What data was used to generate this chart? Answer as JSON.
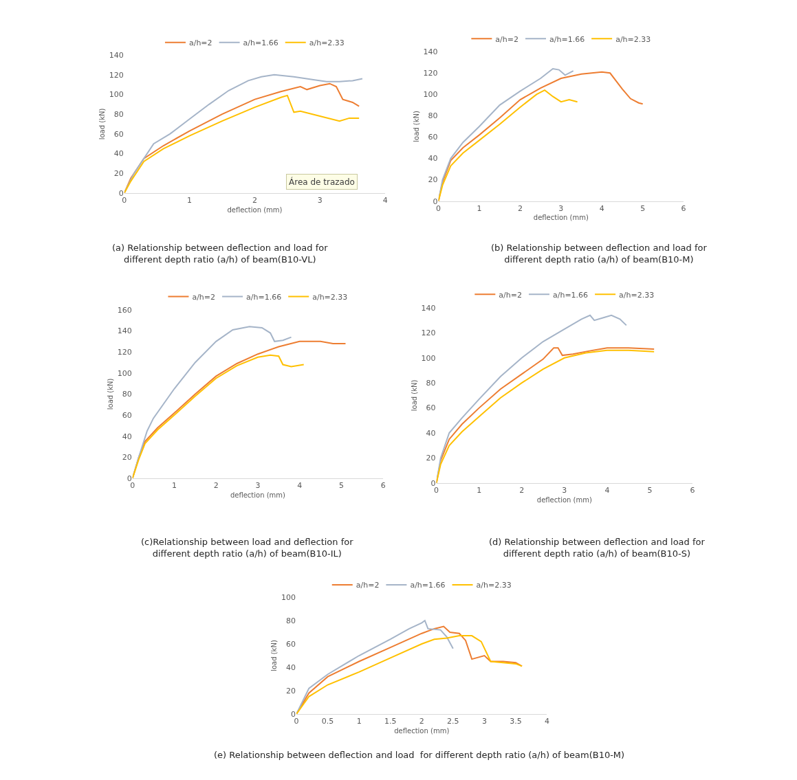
{
  "chart_data": [
    {
      "type": "line",
      "title": "(a) Relationship between deflection and load for different depth ratio (a/h) of beam(B10-VL)",
      "xlabel": "deflection (mm)",
      "ylabel": "load (kN)",
      "xlim": [
        0,
        4
      ],
      "xticks": [
        0,
        1,
        2,
        3,
        4
      ],
      "ylim": [
        0,
        140
      ],
      "yticks": [
        0,
        20,
        40,
        60,
        80,
        100,
        120,
        140
      ],
      "legend": "top",
      "grid": false,
      "marker": "none",
      "annotations": [
        "Área de trazado"
      ],
      "series": [
        {
          "name": "a/h=2",
          "color": "#ed7d31",
          "x": [
            0,
            0.1,
            0.3,
            0.6,
            1,
            1.5,
            2,
            2.4,
            2.7,
            2.8,
            3,
            3.15,
            3.25,
            3.35,
            3.5,
            3.6
          ],
          "values": [
            0,
            15,
            35,
            48,
            63,
            80,
            95,
            103,
            108,
            105,
            109,
            111,
            108,
            95,
            92,
            88
          ]
        },
        {
          "name": "a/h=1.66",
          "color": "#a5b4c8",
          "x": [
            0,
            0.15,
            0.3,
            0.45,
            0.7,
            1,
            1.3,
            1.6,
            1.9,
            2.1,
            2.3,
            2.6,
            2.9,
            3.1,
            3.3,
            3.5,
            3.65
          ],
          "values": [
            0,
            20,
            35,
            50,
            60,
            75,
            90,
            104,
            114,
            118,
            120,
            118,
            115,
            113,
            113,
            114,
            116
          ]
        },
        {
          "name": "a/h=2.33",
          "color": "#ffc000",
          "x": [
            0,
            0.1,
            0.3,
            0.6,
            1,
            1.5,
            2,
            2.4,
            2.5,
            2.6,
            2.7,
            3,
            3.3,
            3.45,
            3.6
          ],
          "values": [
            0,
            12,
            32,
            45,
            58,
            73,
            87,
            97,
            99,
            82,
            83,
            78,
            73,
            76,
            76
          ]
        }
      ]
    },
    {
      "type": "line",
      "title": "(b) Relationship between deflection and load for different depth ratio (a/h) of beam(B10-M)",
      "xlabel": "deflection (mm)",
      "ylabel": "load (kN)",
      "xlim": [
        0,
        6
      ],
      "xticks": [
        0,
        1,
        2,
        3,
        4,
        5,
        6
      ],
      "ylim": [
        0,
        140
      ],
      "yticks": [
        0,
        20,
        40,
        60,
        80,
        100,
        120,
        140
      ],
      "legend": "top",
      "grid": false,
      "marker": "none",
      "series": [
        {
          "name": "a/h=2",
          "color": "#ed7d31",
          "x": [
            0,
            0.1,
            0.3,
            0.6,
            1,
            1.5,
            2,
            2.5,
            3,
            3.5,
            4,
            4.2,
            4.5,
            4.7,
            4.9,
            5
          ],
          "values": [
            0,
            18,
            38,
            50,
            62,
            78,
            95,
            106,
            115,
            119,
            121,
            120,
            105,
            96,
            92,
            91
          ]
        },
        {
          "name": "a/h=1.66",
          "color": "#a5b4c8",
          "x": [
            0,
            0.1,
            0.3,
            0.6,
            1,
            1.5,
            2,
            2.5,
            2.8,
            2.95,
            3.1,
            3.3
          ],
          "values": [
            0,
            20,
            40,
            55,
            70,
            90,
            103,
            115,
            124,
            123,
            118,
            122
          ]
        },
        {
          "name": "a/h=2.33",
          "color": "#ffc000",
          "x": [
            0,
            0.1,
            0.3,
            0.6,
            1,
            1.5,
            2,
            2.4,
            2.6,
            2.8,
            3,
            3.2,
            3.4
          ],
          "values": [
            0,
            15,
            33,
            45,
            57,
            72,
            88,
            100,
            104,
            98,
            93,
            95,
            93
          ]
        }
      ]
    },
    {
      "type": "line",
      "title": "(c)Relationship between load and deflection for different depth ratio (a/h) of beam(B10-IL)",
      "xlabel": "deflection (mm)",
      "ylabel": "load (kN)",
      "xlim": [
        0,
        6
      ],
      "xticks": [
        0,
        1,
        2,
        3,
        4,
        5,
        6
      ],
      "ylim": [
        0,
        160
      ],
      "yticks": [
        0,
        20,
        40,
        60,
        80,
        100,
        120,
        140,
        160
      ],
      "legend": "top",
      "grid": false,
      "marker": "none",
      "series": [
        {
          "name": "a/h=2",
          "color": "#ed7d31",
          "x": [
            0,
            0.15,
            0.3,
            0.6,
            1,
            1.5,
            2,
            2.5,
            3,
            3.5,
            4,
            4.5,
            4.8,
            5.1
          ],
          "values": [
            0,
            20,
            35,
            48,
            62,
            80,
            97,
            109,
            118,
            125,
            130,
            130,
            128,
            128
          ]
        },
        {
          "name": "a/h=1.66",
          "color": "#a5b4c8",
          "x": [
            0,
            0.15,
            0.35,
            0.5,
            1,
            1.5,
            2,
            2.4,
            2.8,
            3.1,
            3.3,
            3.4,
            3.6,
            3.8
          ],
          "values": [
            0,
            20,
            45,
            57,
            85,
            110,
            130,
            141,
            144,
            143,
            138,
            130,
            131,
            134
          ]
        },
        {
          "name": "a/h=2.33",
          "color": "#ffc000",
          "x": [
            0,
            0.15,
            0.3,
            0.6,
            1,
            1.5,
            2,
            2.5,
            3,
            3.3,
            3.5,
            3.6,
            3.8,
            4.1
          ],
          "values": [
            0,
            18,
            33,
            46,
            60,
            78,
            95,
            107,
            115,
            117,
            116,
            108,
            106,
            108
          ]
        }
      ]
    },
    {
      "type": "line",
      "title": "(d) Relationship between deflection and load for different depth ratio (a/h) of beam(B10-S)",
      "xlabel": "deflection (mm)",
      "ylabel": "load (kN)",
      "xlim": [
        0,
        6
      ],
      "xticks": [
        0,
        1,
        2,
        3,
        4,
        5,
        6
      ],
      "ylim": [
        0,
        140
      ],
      "yticks": [
        0,
        20,
        40,
        60,
        80,
        100,
        120,
        140
      ],
      "legend": "top",
      "grid": false,
      "marker": "none",
      "series": [
        {
          "name": "a/h=2",
          "color": "#ed7d31",
          "x": [
            0,
            0.1,
            0.3,
            0.6,
            1,
            1.5,
            2,
            2.5,
            2.75,
            2.85,
            2.95,
            3.2,
            3.5,
            4,
            4.5,
            5.1
          ],
          "values": [
            0,
            18,
            35,
            47,
            60,
            75,
            87,
            99,
            108,
            108,
            102,
            103,
            105,
            108,
            108,
            107
          ]
        },
        {
          "name": "a/h=1.66",
          "color": "#a5b4c8",
          "x": [
            0,
            0.1,
            0.3,
            0.6,
            1,
            1.5,
            2,
            2.5,
            3,
            3.4,
            3.6,
            3.7,
            3.9,
            4.1,
            4.3,
            4.45
          ],
          "values": [
            0,
            20,
            40,
            52,
            67,
            85,
            100,
            113,
            123,
            131,
            134,
            130,
            132,
            134,
            131,
            126
          ]
        },
        {
          "name": "a/h=2.33",
          "color": "#ffc000",
          "x": [
            0,
            0.1,
            0.3,
            0.6,
            1,
            1.5,
            2,
            2.5,
            3,
            3.5,
            4,
            4.5,
            5.1
          ],
          "values": [
            0,
            15,
            30,
            41,
            53,
            68,
            80,
            91,
            100,
            104,
            106,
            106,
            105
          ]
        }
      ]
    },
    {
      "type": "line",
      "title": "(e) Relationship between deflection and load  for different depth ratio (a/h) of beam(B10-M)",
      "xlabel": "deflection (mm)",
      "ylabel": "load (kN)",
      "xlim": [
        0,
        4
      ],
      "xticks": [
        0,
        0.5,
        1,
        1.5,
        2,
        2.5,
        3,
        3.5,
        4
      ],
      "ylim": [
        0,
        100
      ],
      "yticks": [
        0,
        20,
        40,
        60,
        80,
        100
      ],
      "legend": "top",
      "grid": false,
      "marker": "none",
      "series": [
        {
          "name": "a/h=2",
          "color": "#ed7d31",
          "x": [
            0,
            0.2,
            0.5,
            1,
            1.5,
            2,
            2.2,
            2.35,
            2.45,
            2.6,
            2.7,
            2.8,
            3,
            3.1,
            3.3,
            3.5,
            3.6
          ],
          "values": [
            0,
            18,
            32,
            45,
            57,
            69,
            73,
            75,
            70,
            69,
            63,
            47,
            50,
            45,
            45,
            44,
            41
          ]
        },
        {
          "name": "a/h=1.66",
          "color": "#a5b4c8",
          "x": [
            0,
            0.2,
            0.5,
            1,
            1.5,
            1.8,
            2,
            2.05,
            2.1,
            2.3,
            2.4,
            2.5
          ],
          "values": [
            0,
            22,
            34,
            50,
            64,
            73,
            78,
            80,
            73,
            72,
            66,
            56
          ]
        },
        {
          "name": "a/h=2.33",
          "color": "#ffc000",
          "x": [
            0,
            0.2,
            0.5,
            1,
            1.5,
            2,
            2.2,
            2.4,
            2.6,
            2.8,
            2.95,
            3.1,
            3.3,
            3.5,
            3.6
          ],
          "values": [
            0,
            15,
            25,
            36,
            48,
            60,
            64,
            65,
            67,
            67,
            62,
            45,
            44,
            43,
            41
          ]
        }
      ]
    }
  ]
}
